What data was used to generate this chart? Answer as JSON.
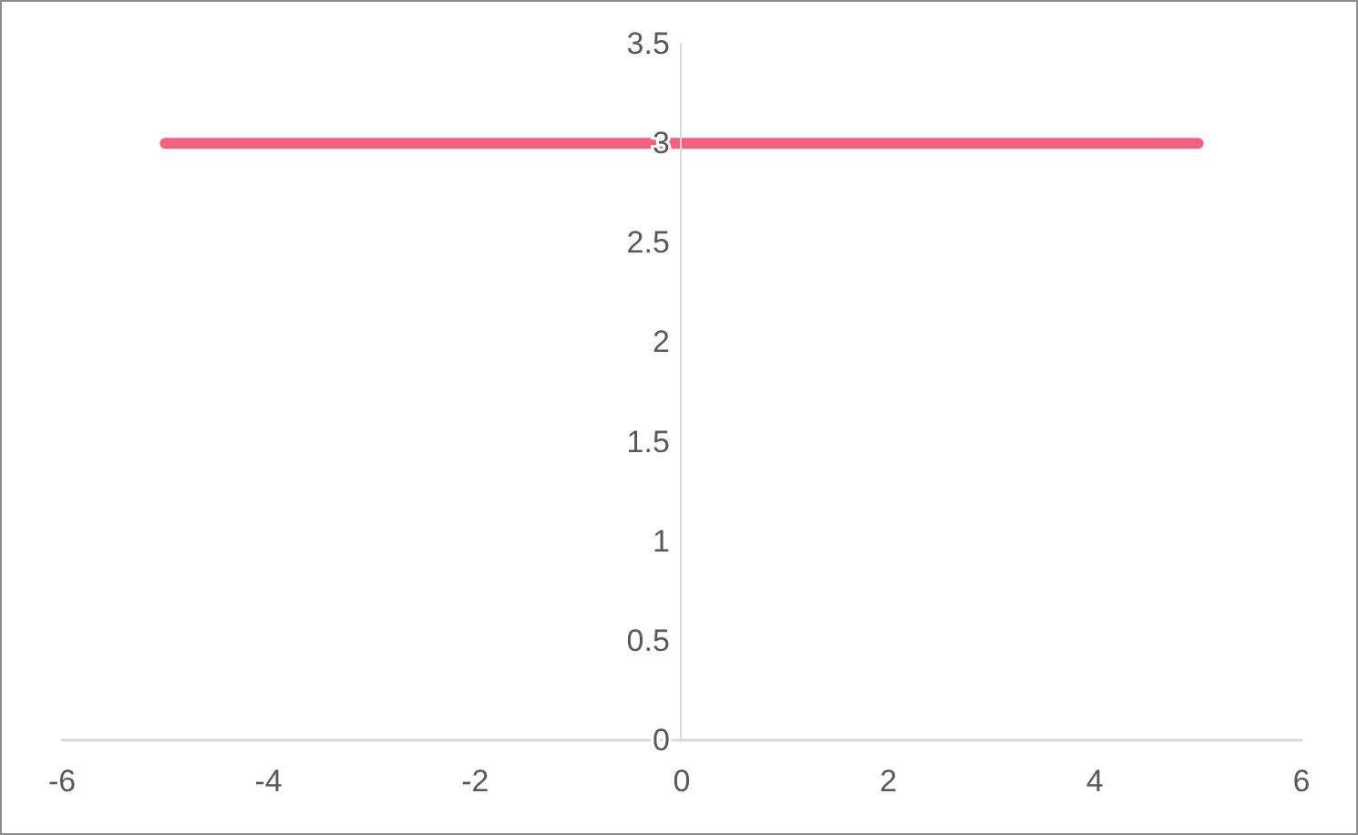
{
  "chart_data": {
    "type": "line",
    "x": [
      -5,
      5
    ],
    "series": [
      {
        "color": "#f06282",
        "values": [
          3,
          3
        ]
      }
    ],
    "xlim": [
      -6,
      6
    ],
    "xticks": [
      -6,
      -4,
      -2,
      0,
      2,
      4,
      6
    ],
    "ylim": [
      0,
      3.5
    ],
    "yticks": [
      0,
      0.5,
      1,
      1.5,
      2,
      2.5,
      3,
      3.5
    ],
    "grid": false,
    "marker": "none",
    "line_style": "solid"
  }
}
